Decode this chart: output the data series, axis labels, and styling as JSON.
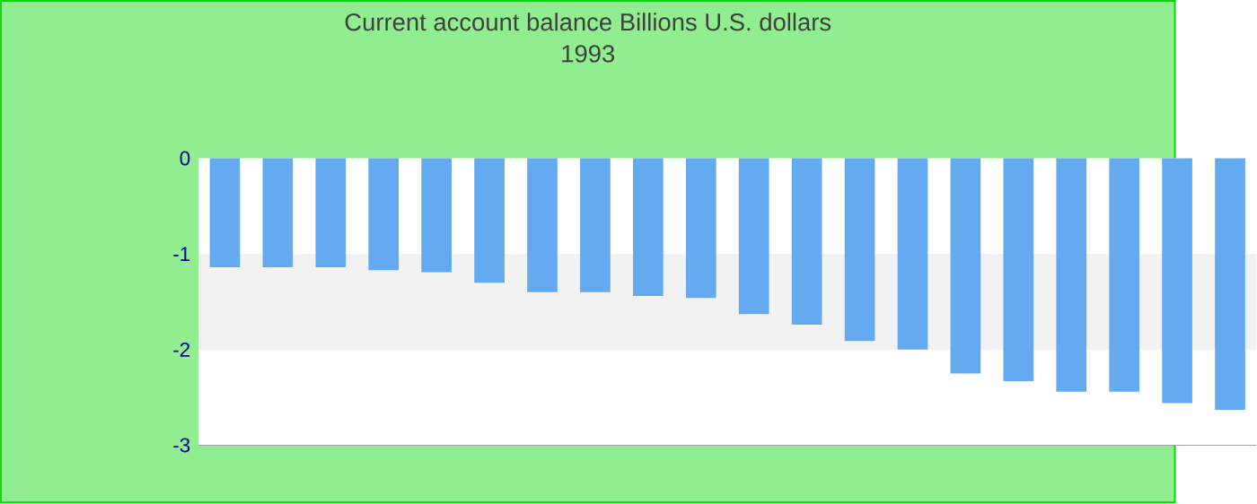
{
  "chart_data": {
    "type": "bar",
    "title": "Current account balance Billions U.S. dollars",
    "subtitle": "1993",
    "categories": [
      null,
      null,
      null,
      null,
      null,
      null,
      null,
      null,
      null,
      null,
      null,
      null,
      null,
      null,
      null,
      null,
      null,
      null,
      null,
      null
    ],
    "values": [
      -1.14,
      -1.14,
      -1.14,
      -1.17,
      -1.19,
      -1.3,
      -1.4,
      -1.4,
      -1.44,
      -1.46,
      -1.63,
      -1.74,
      -1.91,
      -2.0,
      -2.25,
      -2.33,
      -2.44,
      -2.44,
      -2.56,
      -2.63
    ],
    "color": "#64aaf0",
    "ylim": [
      -3,
      0
    ],
    "yticks": [
      -3,
      -2,
      -1,
      0
    ],
    "bands": [
      {
        "axis": "y",
        "from": -2,
        "to": -1,
        "color": "#f2f2f2"
      }
    ],
    "grid": false
  }
}
